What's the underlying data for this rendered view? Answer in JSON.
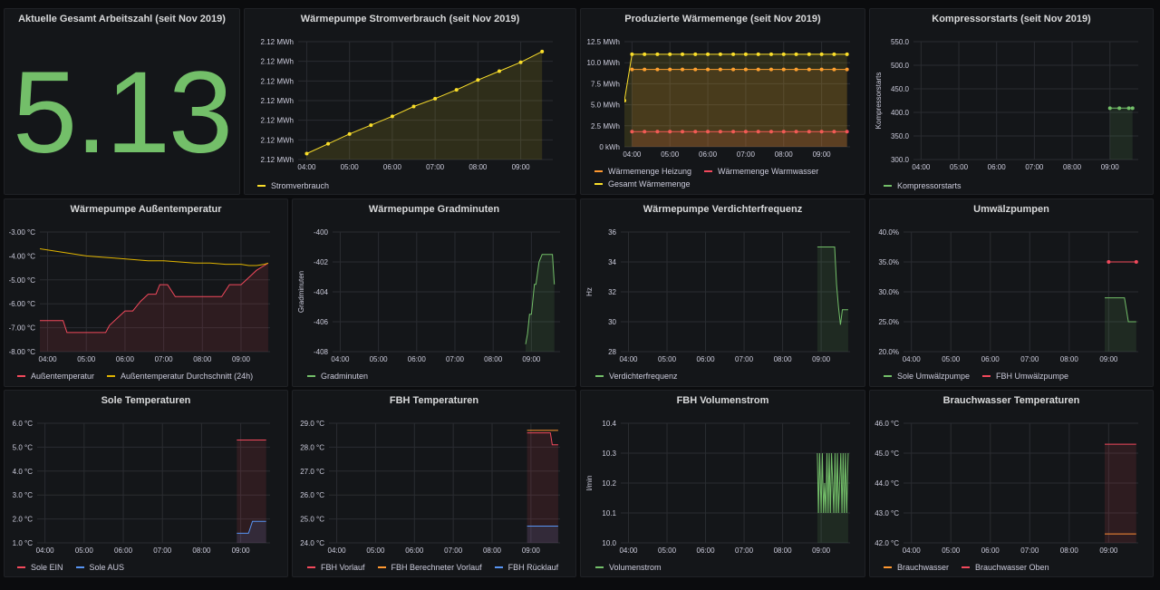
{
  "stat": {
    "title": "Aktuelle Gesamt Arbeitszahl (seit Nov 2019)",
    "value": "5.13",
    "color": "#73bf69"
  },
  "chart_data": [
    {
      "id": "strom",
      "type": "line",
      "title": "Wärmepumpe Stromverbrauch (seit Nov 2019)",
      "ylabel": "",
      "x_ticks": [
        "04:00",
        "05:00",
        "06:00",
        "07:00",
        "08:00",
        "09:00"
      ],
      "y_ticks": [
        "2.12 MWh",
        "2.12 MWh",
        "2.12 MWh",
        "2.12 MWh",
        "2.12 MWh",
        "2.12 MWh",
        "2.12 MWh"
      ],
      "ylim": [
        0,
        6
      ],
      "series": [
        {
          "name": "Stromverbrauch",
          "color": "#fade2a",
          "fill": true,
          "points": true,
          "x": [
            4.0,
            4.5,
            5.0,
            5.5,
            6.0,
            6.5,
            7.0,
            7.5,
            8.0,
            8.5,
            9.0,
            9.5
          ],
          "y": [
            0.3,
            0.8,
            1.3,
            1.75,
            2.2,
            2.7,
            3.1,
            3.55,
            4.05,
            4.5,
            4.95,
            5.5
          ]
        }
      ]
    },
    {
      "id": "waerme",
      "type": "line",
      "title": "Produzierte Wärmemenge (seit Nov 2019)",
      "ylabel": "",
      "x_ticks": [
        "04:00",
        "05:00",
        "06:00",
        "07:00",
        "08:00",
        "09:00"
      ],
      "y_ticks": [
        "0 kWh",
        "2.5 MWh",
        "5.0 MWh",
        "7.5 MWh",
        "10.0 MWh",
        "12.5 MWh"
      ],
      "ylim": [
        0,
        12.5
      ],
      "series": [
        {
          "name": "Wärmemenge Heizung",
          "color": "#ff9830",
          "fill": true,
          "points": true,
          "x": [
            4.0,
            4.33,
            4.67,
            5.0,
            5.33,
            5.67,
            6.0,
            6.33,
            6.67,
            7.0,
            7.33,
            7.67,
            8.0,
            8.33,
            8.67,
            9.0,
            9.33,
            9.67
          ],
          "y": [
            9.2,
            9.2,
            9.2,
            9.2,
            9.2,
            9.2,
            9.2,
            9.2,
            9.2,
            9.2,
            9.2,
            9.2,
            9.2,
            9.2,
            9.2,
            9.2,
            9.2,
            9.2
          ]
        },
        {
          "name": "Wärmemenge Warmwasser",
          "color": "#f2495c",
          "fill": true,
          "points": true,
          "x": [
            4.0,
            4.33,
            4.67,
            5.0,
            5.33,
            5.67,
            6.0,
            6.33,
            6.67,
            7.0,
            7.33,
            7.67,
            8.0,
            8.33,
            8.67,
            9.0,
            9.33,
            9.67
          ],
          "y": [
            1.8,
            1.8,
            1.8,
            1.8,
            1.8,
            1.8,
            1.8,
            1.8,
            1.8,
            1.8,
            1.8,
            1.8,
            1.8,
            1.8,
            1.8,
            1.8,
            1.8,
            1.8
          ]
        },
        {
          "name": "Gesamt Wärmemenge",
          "color": "#fade2a",
          "fill": true,
          "points": true,
          "x": [
            3.8,
            4.0,
            4.33,
            4.67,
            5.0,
            5.33,
            5.67,
            6.0,
            6.33,
            6.67,
            7.0,
            7.33,
            7.67,
            8.0,
            8.33,
            8.67,
            9.0,
            9.33,
            9.67
          ],
          "y": [
            5.5,
            11.0,
            11.0,
            11.0,
            11.0,
            11.0,
            11.0,
            11.0,
            11.0,
            11.0,
            11.0,
            11.0,
            11.0,
            11.0,
            11.0,
            11.0,
            11.0,
            11.0,
            11.0
          ]
        }
      ]
    },
    {
      "id": "kompressor",
      "type": "line",
      "title": "Kompressorstarts (seit Nov 2019)",
      "ylabel": "Kompressorstarts",
      "x_ticks": [
        "04:00",
        "05:00",
        "06:00",
        "07:00",
        "08:00",
        "09:00"
      ],
      "y_ticks": [
        "300.0",
        "350.0",
        "400.0",
        "450.0",
        "500.0",
        "550.0"
      ],
      "ylim": [
        300,
        550
      ],
      "series": [
        {
          "name": "Kompressorstarts",
          "color": "#73bf69",
          "fill": true,
          "points": true,
          "x": [
            9.0,
            9.25,
            9.5,
            9.6
          ],
          "y": [
            409,
            409,
            409,
            409
          ]
        }
      ]
    },
    {
      "id": "aussen",
      "type": "line",
      "title": "Wärmepumpe Außentemperatur",
      "ylabel": "",
      "x_ticks": [
        "04:00",
        "05:00",
        "06:00",
        "07:00",
        "08:00",
        "09:00"
      ],
      "y_ticks": [
        "-8.00 °C",
        "-7.00 °C",
        "-6.00 °C",
        "-5.00 °C",
        "-4.00 °C",
        "-3.00 °C"
      ],
      "ylim": [
        -8,
        -3
      ],
      "series": [
        {
          "name": "Außentemperatur",
          "color": "#f2495c",
          "fill": true,
          "points": false,
          "x": [
            3.8,
            4.4,
            4.5,
            5.5,
            5.6,
            5.8,
            6.0,
            6.2,
            6.4,
            6.6,
            6.8,
            6.9,
            7.1,
            7.3,
            8.5,
            8.7,
            9.0,
            9.2,
            9.4,
            9.6,
            9.7
          ],
          "y": [
            -6.7,
            -6.7,
            -7.2,
            -7.2,
            -6.9,
            -6.6,
            -6.3,
            -6.3,
            -5.9,
            -5.6,
            -5.6,
            -5.2,
            -5.2,
            -5.7,
            -5.7,
            -5.2,
            -5.2,
            -4.9,
            -4.6,
            -4.4,
            -4.3
          ]
        },
        {
          "name": "Außentemperatur Durchschnitt (24h)",
          "color": "#e0b400",
          "fill": false,
          "points": false,
          "x": [
            3.8,
            4.2,
            4.6,
            5.0,
            5.4,
            5.8,
            6.2,
            6.6,
            7.0,
            7.4,
            7.8,
            8.2,
            8.6,
            9.0,
            9.2,
            9.4,
            9.6,
            9.7
          ],
          "y": [
            -3.7,
            -3.8,
            -3.9,
            -4.0,
            -4.05,
            -4.1,
            -4.15,
            -4.2,
            -4.2,
            -4.25,
            -4.3,
            -4.3,
            -4.35,
            -4.35,
            -4.4,
            -4.4,
            -4.35,
            -4.3
          ]
        }
      ]
    },
    {
      "id": "gradminuten",
      "type": "line",
      "title": "Wärmepumpe Gradminuten",
      "ylabel": "Gradminuten",
      "x_ticks": [
        "04:00",
        "05:00",
        "06:00",
        "07:00",
        "08:00",
        "09:00"
      ],
      "y_ticks": [
        "-408",
        "-406",
        "-404",
        "-402",
        "-400"
      ],
      "ylim": [
        -408,
        -400
      ],
      "series": [
        {
          "name": "Gradminuten",
          "color": "#73bf69",
          "fill": true,
          "points": false,
          "x": [
            8.85,
            8.9,
            8.95,
            9.0,
            9.08,
            9.12,
            9.2,
            9.28,
            9.36,
            9.45,
            9.55,
            9.6
          ],
          "y": [
            -407.5,
            -406.8,
            -405.5,
            -405.5,
            -403.5,
            -403.5,
            -402.0,
            -401.5,
            -401.5,
            -401.5,
            -401.5,
            -403.5
          ]
        }
      ]
    },
    {
      "id": "verdichter",
      "type": "line",
      "title": "Wärmepumpe Verdichterfrequenz",
      "ylabel": "Hz",
      "x_ticks": [
        "04:00",
        "05:00",
        "06:00",
        "07:00",
        "08:00",
        "09:00"
      ],
      "y_ticks": [
        "28",
        "30",
        "32",
        "34",
        "36"
      ],
      "ylim": [
        28,
        36
      ],
      "series": [
        {
          "name": "Verdichterfrequenz",
          "color": "#73bf69",
          "fill": true,
          "points": false,
          "x": [
            8.9,
            9.0,
            9.2,
            9.35,
            9.4,
            9.45,
            9.5,
            9.55,
            9.6,
            9.7
          ],
          "y": [
            35.0,
            35.0,
            35.0,
            35.0,
            32.5,
            31.0,
            29.8,
            30.8,
            30.8,
            30.8
          ]
        }
      ]
    },
    {
      "id": "umwaelz",
      "type": "line",
      "title": "Umwälzpumpen",
      "ylabel": "",
      "x_ticks": [
        "04:00",
        "05:00",
        "06:00",
        "07:00",
        "08:00",
        "09:00"
      ],
      "y_ticks": [
        "20.0%",
        "25.0%",
        "30.0%",
        "35.0%",
        "40.0%"
      ],
      "ylim": [
        20,
        40
      ],
      "series": [
        {
          "name": "Sole Umwälzpumpe",
          "color": "#73bf69",
          "fill": true,
          "points": false,
          "x": [
            8.9,
            9.1,
            9.4,
            9.5,
            9.55,
            9.6,
            9.7
          ],
          "y": [
            29.0,
            29.0,
            29.0,
            25.0,
            25.0,
            25.0,
            25.0
          ]
        },
        {
          "name": "FBH Umwälzpumpe",
          "color": "#f2495c",
          "fill": false,
          "points": true,
          "x": [
            9.0,
            9.7
          ],
          "y": [
            35.0,
            35.0
          ]
        }
      ]
    },
    {
      "id": "sole",
      "type": "line",
      "title": "Sole Temperaturen",
      "ylabel": "",
      "x_ticks": [
        "04:00",
        "05:00",
        "06:00",
        "07:00",
        "08:00",
        "09:00"
      ],
      "y_ticks": [
        "1.0 °C",
        "2.0 °C",
        "3.0 °C",
        "4.0 °C",
        "5.0 °C",
        "6.0 °C"
      ],
      "ylim": [
        1,
        6
      ],
      "series": [
        {
          "name": "Sole EIN",
          "color": "#f2495c",
          "fill": true,
          "points": false,
          "x": [
            8.9,
            9.2,
            9.4,
            9.65
          ],
          "y": [
            5.3,
            5.3,
            5.3,
            5.3
          ]
        },
        {
          "name": "Sole AUS",
          "color": "#5794f2",
          "fill": true,
          "points": false,
          "x": [
            8.9,
            9.2,
            9.3,
            9.4,
            9.65
          ],
          "y": [
            1.4,
            1.4,
            1.9,
            1.9,
            1.9
          ]
        }
      ]
    },
    {
      "id": "fbh",
      "type": "line",
      "title": "FBH Temperaturen",
      "ylabel": "",
      "x_ticks": [
        "04:00",
        "05:00",
        "06:00",
        "07:00",
        "08:00",
        "09:00"
      ],
      "y_ticks": [
        "24.0 °C",
        "25.0 °C",
        "26.0 °C",
        "27.0 °C",
        "28.0 °C",
        "29.0 °C"
      ],
      "ylim": [
        24,
        29
      ],
      "series": [
        {
          "name": "FBH Vorlauf",
          "color": "#f2495c",
          "fill": true,
          "points": false,
          "x": [
            8.9,
            9.3,
            9.5,
            9.55,
            9.7
          ],
          "y": [
            28.6,
            28.6,
            28.6,
            28.1,
            28.1
          ]
        },
        {
          "name": "FBH Berechneter Vorlauf",
          "color": "#ff9830",
          "fill": false,
          "points": false,
          "x": [
            8.9,
            9.7
          ],
          "y": [
            28.7,
            28.7
          ]
        },
        {
          "name": "FBH Rücklauf",
          "color": "#5794f2",
          "fill": true,
          "points": false,
          "x": [
            8.9,
            9.7
          ],
          "y": [
            24.7,
            24.7
          ]
        }
      ]
    },
    {
      "id": "volumen",
      "type": "line",
      "title": "FBH Volumenstrom",
      "ylabel": "l/min",
      "x_ticks": [
        "04:00",
        "05:00",
        "06:00",
        "07:00",
        "08:00",
        "09:00"
      ],
      "y_ticks": [
        "10.0",
        "10.1",
        "10.2",
        "10.3",
        "10.4"
      ],
      "ylim": [
        10.0,
        10.4
      ],
      "series": [
        {
          "name": "Volumenstrom",
          "color": "#73bf69",
          "fill": true,
          "points": false,
          "x": [
            8.9,
            8.93,
            8.96,
            9.0,
            9.03,
            9.06,
            9.09,
            9.12,
            9.15,
            9.18,
            9.21,
            9.24,
            9.27,
            9.3,
            9.33,
            9.36,
            9.39,
            9.42,
            9.45,
            9.48,
            9.51,
            9.54,
            9.57,
            9.6,
            9.63,
            9.66,
            9.7
          ],
          "y": [
            10.3,
            10.1,
            10.3,
            10.1,
            10.3,
            10.1,
            10.2,
            10.1,
            10.3,
            10.1,
            10.3,
            10.1,
            10.3,
            10.2,
            10.1,
            10.3,
            10.1,
            10.3,
            10.1,
            10.2,
            10.3,
            10.1,
            10.3,
            10.1,
            10.3,
            10.1,
            10.3
          ]
        }
      ]
    },
    {
      "id": "brauch",
      "type": "line",
      "title": "Brauchwasser Temperaturen",
      "ylabel": "",
      "x_ticks": [
        "04:00",
        "05:00",
        "06:00",
        "07:00",
        "08:00",
        "09:00"
      ],
      "y_ticks": [
        "42.0 °C",
        "43.0 °C",
        "44.0 °C",
        "45.0 °C",
        "46.0 °C"
      ],
      "ylim": [
        42,
        46
      ],
      "series": [
        {
          "name": "Brauchwasser",
          "color": "#ff9830",
          "fill": false,
          "points": false,
          "x": [
            8.9,
            9.7
          ],
          "y": [
            42.3,
            42.3
          ]
        },
        {
          "name": "Brauchwasser Oben",
          "color": "#f2495c",
          "fill": true,
          "points": false,
          "x": [
            8.9,
            9.7
          ],
          "y": [
            45.3,
            45.3
          ]
        }
      ]
    }
  ]
}
